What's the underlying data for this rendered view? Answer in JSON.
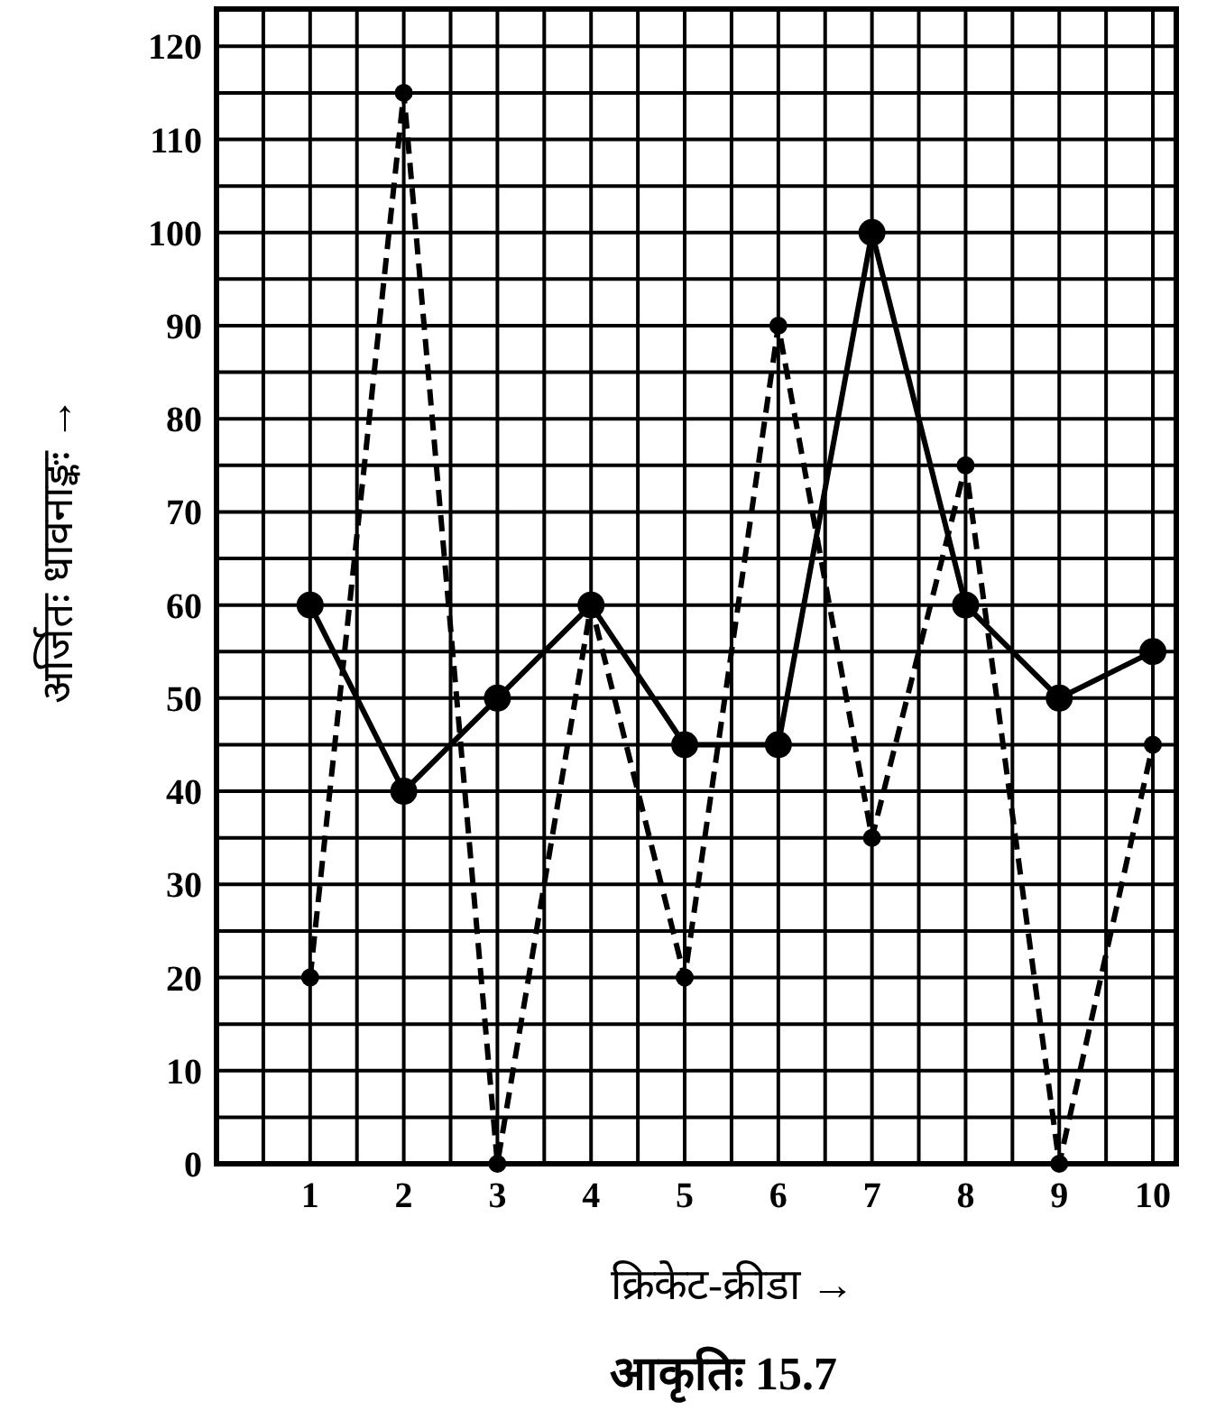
{
  "chart_data": {
    "type": "line",
    "xlabel": "क्रिकेट-क्रीडा →",
    "ylabel": "अर्जितः धावनाङ्कः →",
    "annotations": [
      "आकृतिः 15.7"
    ],
    "x": [
      1,
      2,
      3,
      4,
      5,
      6,
      7,
      8,
      9,
      10
    ],
    "series": [
      {
        "color": "#000000",
        "line_style": "solid",
        "values": [
          60,
          40,
          50,
          60,
          45,
          45,
          100,
          60,
          50,
          55
        ]
      },
      {
        "color": "#000000",
        "line_style": "dashed",
        "values": [
          20,
          115,
          0,
          60,
          20,
          90,
          35,
          75,
          0,
          45
        ]
      }
    ],
    "xlim": [
      0,
      10.25
    ],
    "ylim": [
      0,
      124
    ],
    "xticks": [
      {
        "value": 0.5,
        "label": null
      },
      1,
      {
        "value": 1.5,
        "label": null
      },
      2,
      {
        "value": 2.5,
        "label": null
      },
      3,
      {
        "value": 3.5,
        "label": null
      },
      4,
      {
        "value": 4.5,
        "label": null
      },
      5,
      {
        "value": 5.5,
        "label": null
      },
      6,
      {
        "value": 6.5,
        "label": null
      },
      7,
      {
        "value": 7.5,
        "label": null
      },
      8,
      {
        "value": 8.5,
        "label": null
      },
      9,
      {
        "value": 9.5,
        "label": null
      },
      10
    ],
    "yticks": [
      0,
      {
        "value": 5,
        "label": null
      },
      10,
      {
        "value": 15,
        "label": null
      },
      20,
      {
        "value": 25,
        "label": null
      },
      30,
      {
        "value": 35,
        "label": null
      },
      40,
      {
        "value": 45,
        "label": null
      },
      50,
      {
        "value": 55,
        "label": null
      },
      60,
      {
        "value": 65,
        "label": null
      },
      70,
      {
        "value": 75,
        "label": null
      },
      80,
      {
        "value": 85,
        "label": null
      },
      90,
      {
        "value": 95,
        "label": null
      },
      100,
      {
        "value": 105,
        "label": null
      },
      110,
      {
        "value": 115,
        "label": null
      },
      120
    ],
    "grid": true,
    "marker": "circle"
  }
}
